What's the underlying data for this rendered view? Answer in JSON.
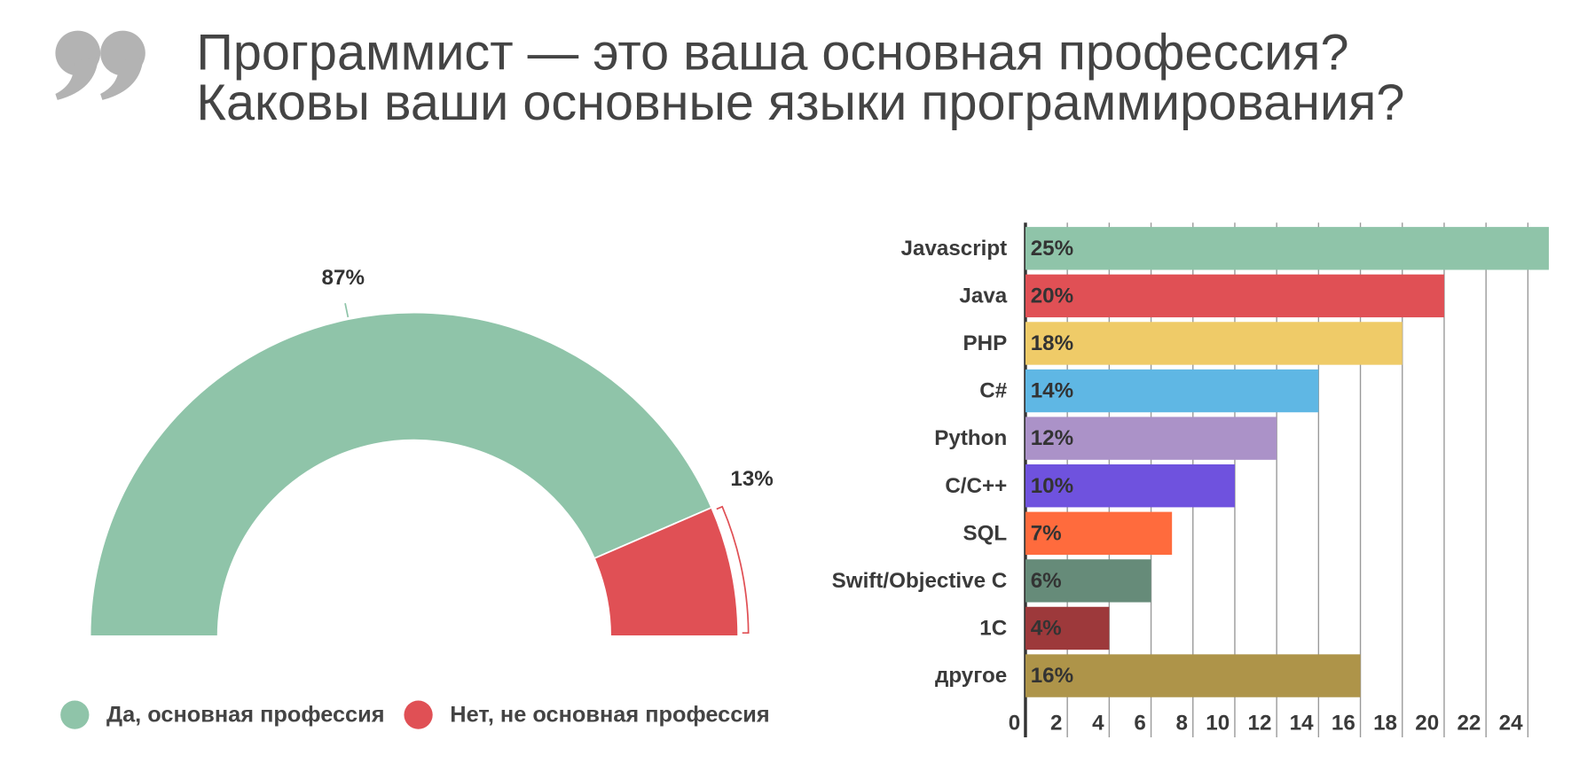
{
  "title": [
    "Программист — это ваша основная профессия?",
    "Каковы ваши основные языки программирования?"
  ],
  "chart_data": [
    {
      "type": "pie",
      "categories": [
        "Да, основная профессия",
        "Нет, не основная профессия"
      ],
      "values": [
        87,
        13
      ],
      "value_labels": [
        "87%",
        "13%"
      ],
      "colors": [
        "#8fc4a9",
        "#e05055"
      ]
    },
    {
      "type": "bar",
      "orientation": "horizontal",
      "categories": [
        "Javascript",
        "Java",
        "PHP",
        "C#",
        "Python",
        "C/C++",
        "SQL",
        "Swift/Objective C",
        "1C",
        "другое"
      ],
      "values": [
        25,
        20,
        18,
        14,
        12,
        10,
        7,
        6,
        4,
        16
      ],
      "value_labels": [
        "25%",
        "20%",
        "18%",
        "14%",
        "12%",
        "10%",
        "7%",
        "6%",
        "4%",
        "16%"
      ],
      "colors": [
        "#8fc4a9",
        "#e05055",
        "#efcb68",
        "#5fb7e4",
        "#ab92c8",
        "#6f52de",
        "#ff6b3d",
        "#668b79",
        "#9d393b",
        "#ae9449"
      ],
      "xlim": [
        0,
        25
      ],
      "xticks": [
        0,
        2,
        4,
        6,
        8,
        10,
        12,
        14,
        16,
        18,
        20,
        22,
        24
      ],
      "grid": true
    }
  ]
}
